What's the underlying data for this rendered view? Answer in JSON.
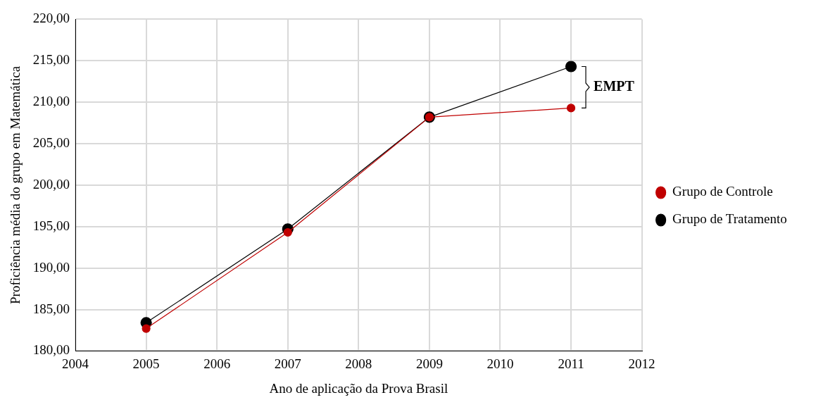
{
  "chart_data": {
    "type": "line",
    "x": [
      2005,
      2007,
      2009,
      2011
    ],
    "series": [
      {
        "name": "Grupo de Tratamento",
        "color": "#000000",
        "values": [
          183.4,
          194.7,
          208.2,
          214.3
        ]
      },
      {
        "name": "Grupo de Controle",
        "color": "#c00000",
        "values": [
          182.7,
          194.3,
          208.2,
          209.3
        ]
      }
    ],
    "xlim": [
      2004,
      2012
    ],
    "xticks": [
      2004,
      2005,
      2006,
      2007,
      2008,
      2009,
      2010,
      2011,
      2012
    ],
    "ylim": [
      180,
      220
    ],
    "yticks": [
      {
        "value": 180,
        "label": "180,00"
      },
      {
        "value": 185,
        "label": "185,00"
      },
      {
        "value": 190,
        "label": "190,00"
      },
      {
        "value": 195,
        "label": "195,00"
      },
      {
        "value": 200,
        "label": "200,00"
      },
      {
        "value": 205,
        "label": "205,00"
      },
      {
        "value": 210,
        "label": "210,00"
      },
      {
        "value": 215,
        "label": "215,00"
      },
      {
        "value": 220,
        "label": "220,00"
      }
    ],
    "xlabel": "Ano de aplicação da Prova Brasil",
    "ylabel": "Proficiência média do grupo em Matemática",
    "annotations": [
      "EMPT"
    ],
    "grid": true,
    "legend": "right",
    "marker": "circle",
    "line_style": "solid"
  }
}
